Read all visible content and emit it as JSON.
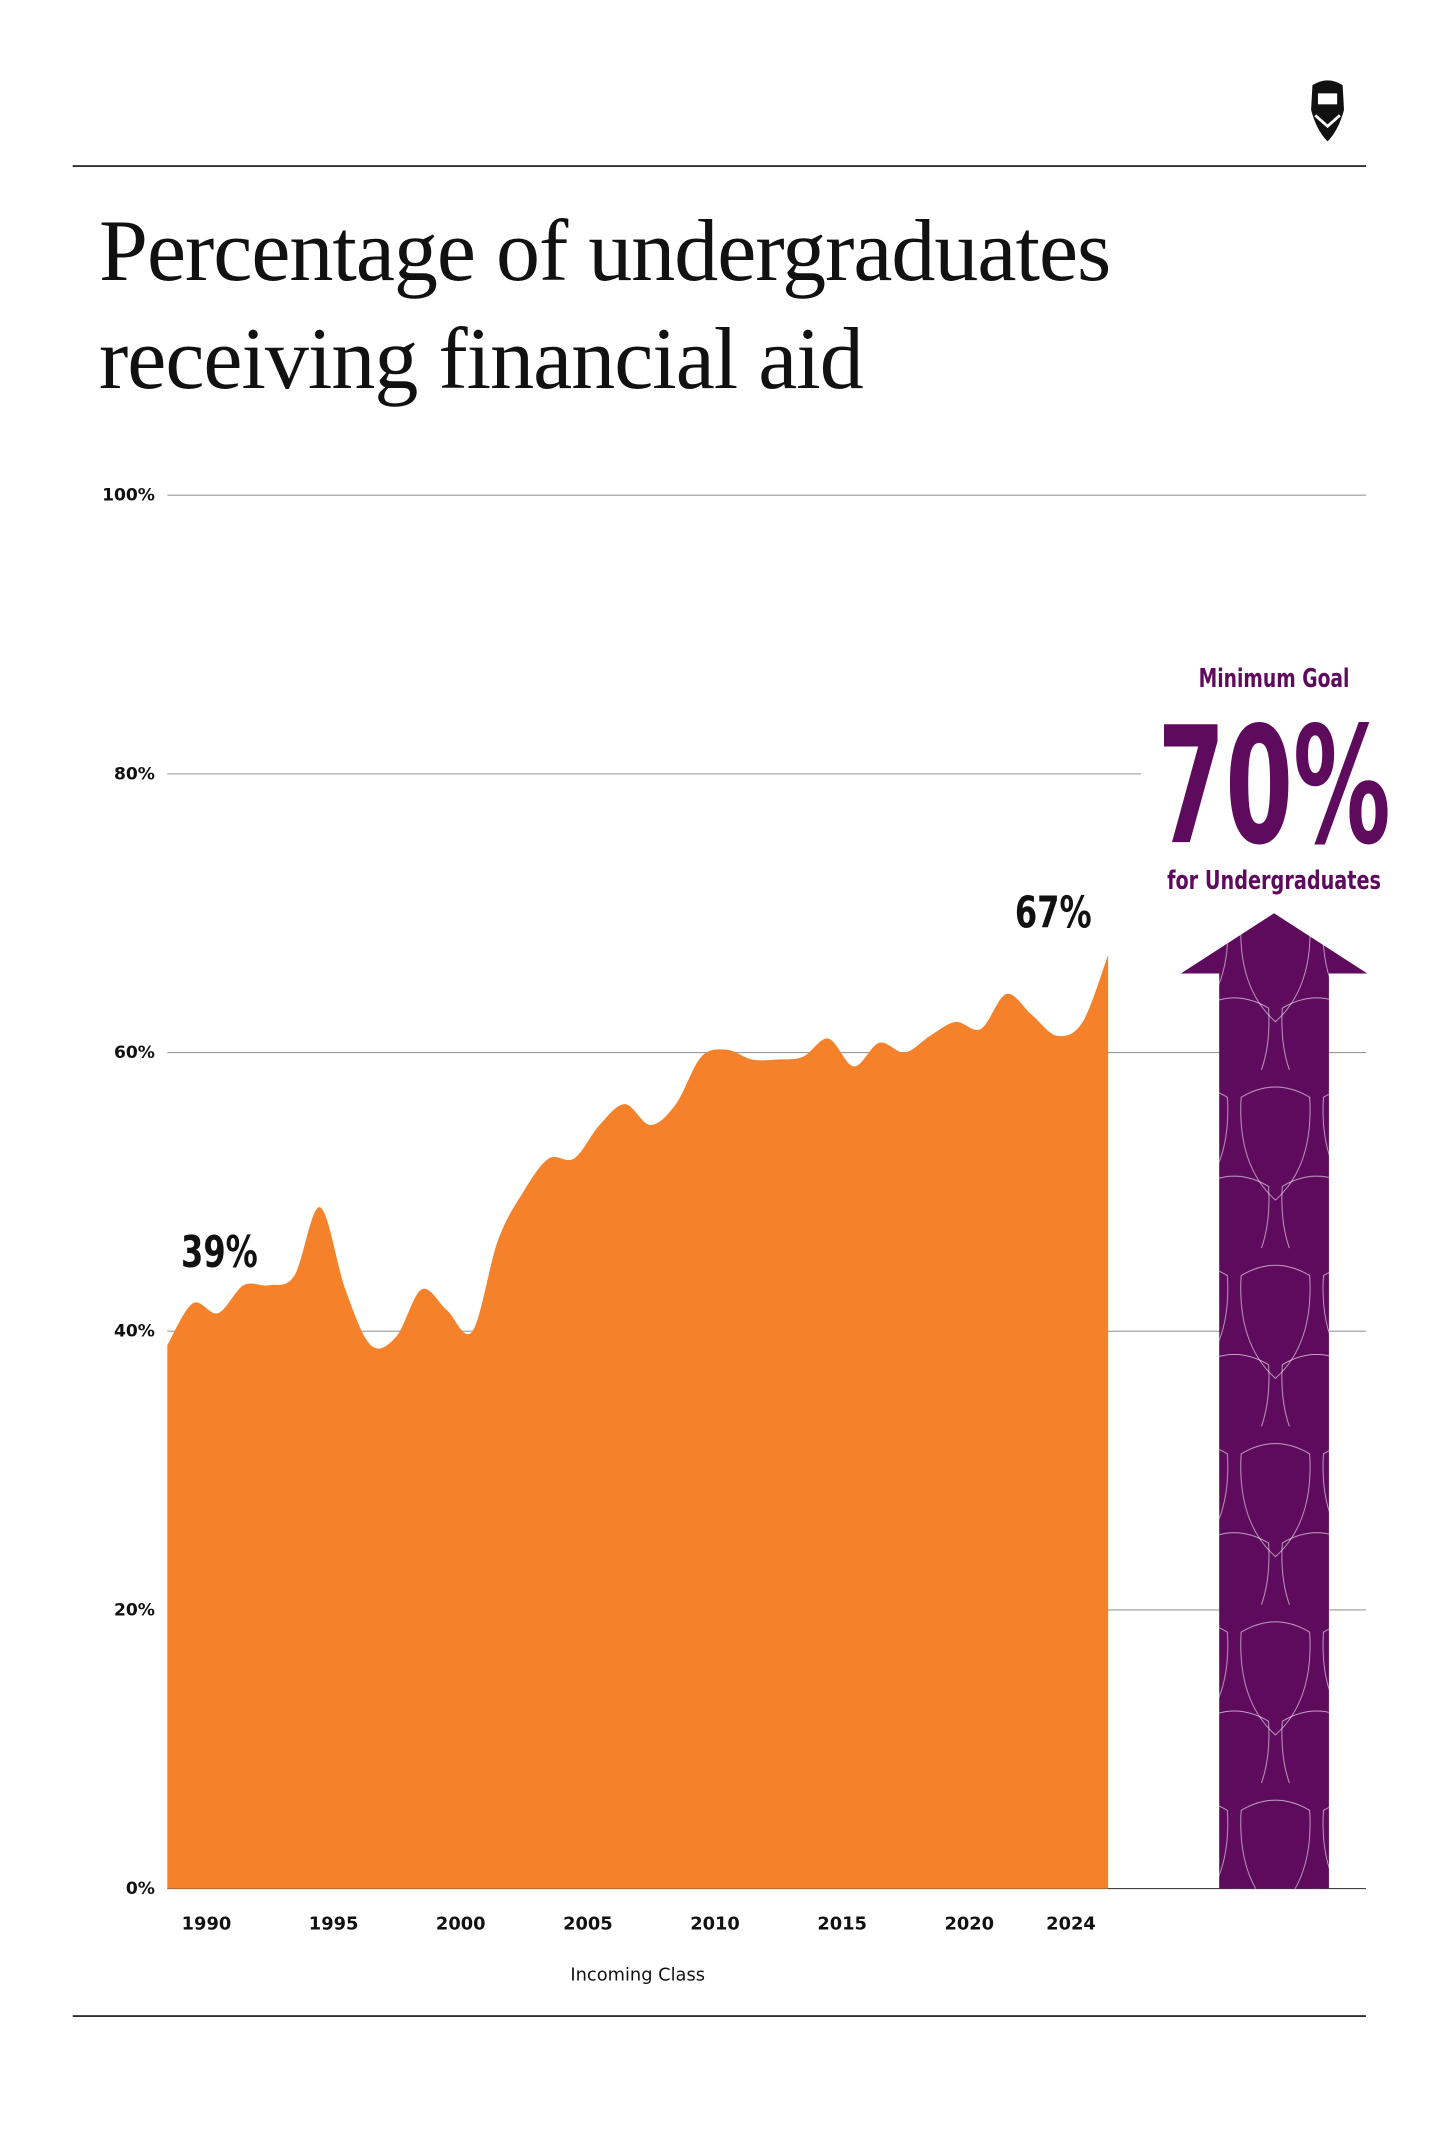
{
  "chart_data": {
    "type": "area",
    "title": "Percentage of undergraduates receiving financial aid",
    "x_label": "Incoming Class",
    "x": [
      1989,
      1990,
      1991,
      1992,
      1993,
      1994,
      1995,
      1996,
      1997,
      1998,
      1999,
      2000,
      2001,
      2002,
      2003,
      2004,
      2005,
      2006,
      2007,
      2008,
      2009,
      2010,
      2011,
      2012,
      2013,
      2014,
      2015,
      2016,
      2017,
      2018,
      2019,
      2020,
      2021,
      2022,
      2023,
      2024,
      2025,
      2026
    ],
    "values": [
      39,
      42,
      41.3,
      43.3,
      43.3,
      44,
      48.9,
      43,
      39,
      39.6,
      43,
      41.5,
      40,
      46.5,
      50,
      52.4,
      52.4,
      54.8,
      56.3,
      54.8,
      56.3,
      59.7,
      60.2,
      59.5,
      59.5,
      59.7,
      61,
      59,
      60.7,
      60,
      61.2,
      62.2,
      61.7,
      64.2,
      62.7,
      61.2,
      62.2,
      67
    ],
    "color": "#f5822a",
    "xlim": [
      1989,
      2026
    ],
    "xticks": [
      1990,
      1995,
      2000,
      2005,
      2010,
      2015,
      2020,
      2024
    ],
    "ylim": [
      0,
      100
    ],
    "yticks": [
      {
        "value": 0,
        "label": "0%"
      },
      {
        "value": 20,
        "label": "20%"
      },
      {
        "value": 40,
        "label": "40%"
      },
      {
        "value": 60,
        "label": "60%"
      },
      {
        "value": 80,
        "label": "80%"
      },
      {
        "value": 100,
        "label": "100%"
      }
    ],
    "grid": true,
    "annotations": [
      {
        "label": "39%",
        "x": 1989,
        "y": 39
      },
      {
        "label": "67%",
        "x": 2026,
        "y": 67
      }
    ],
    "goal": {
      "title": "Minimum Goal",
      "value": 70,
      "label": "70%",
      "subtitle": "for Undergraduates",
      "color": "#5e0b5e"
    }
  }
}
